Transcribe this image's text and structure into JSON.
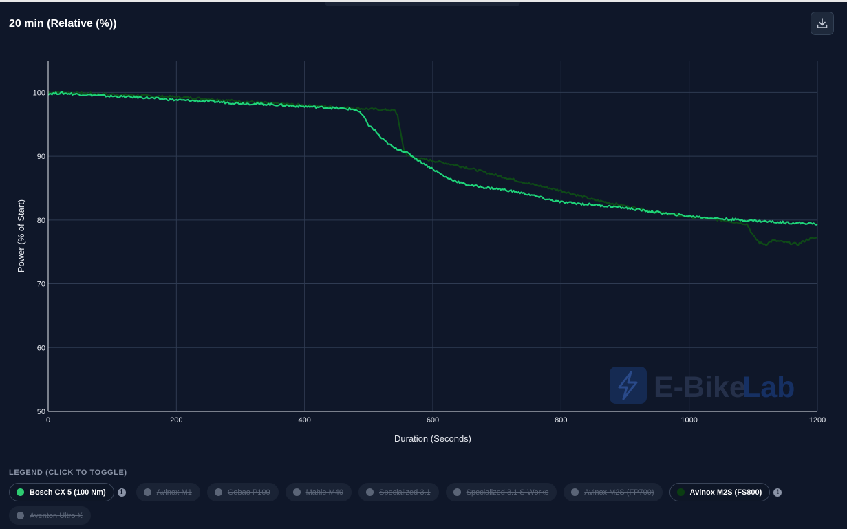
{
  "header": {
    "title": "20 min (Relative (%))",
    "download_icon": "download-icon"
  },
  "watermark": {
    "text_a": "E-Bike",
    "text_b": "Lab",
    "icon": "bolt-icon"
  },
  "legend": {
    "title": "LEGEND (CLICK TO TOGGLE)",
    "items": [
      {
        "label": "Bosch CX 5 (100 Nm)",
        "color": "#2ecc71",
        "active": true,
        "info": true
      },
      {
        "label": "Avinox M1",
        "color": "#5b6577",
        "active": false,
        "info": false
      },
      {
        "label": "Gobao P100",
        "color": "#5b6577",
        "active": false,
        "info": false
      },
      {
        "label": "Mahle M40",
        "color": "#5b6577",
        "active": false,
        "info": false
      },
      {
        "label": "Specialized 3.1",
        "color": "#5b6577",
        "active": false,
        "info": false
      },
      {
        "label": "Specialized 3.1 S-Works",
        "color": "#5b6577",
        "active": false,
        "info": false
      },
      {
        "label": "Avinox M2S (FP700)",
        "color": "#5b6577",
        "active": false,
        "info": false
      },
      {
        "label": "Avinox M2S (FS800)",
        "color": "#0b3d12",
        "active": true,
        "info": true
      },
      {
        "label": "Aventon Ultro X",
        "color": "#5b6577",
        "active": false,
        "info": false
      }
    ]
  },
  "chart_data": {
    "type": "line",
    "title": "20 min (Relative (%))",
    "xlabel": "Duration (Seconds)",
    "ylabel": "Power (% of Start)",
    "xlim": [
      0,
      1200
    ],
    "ylim": [
      50,
      105
    ],
    "xticks": [
      0,
      200,
      400,
      600,
      800,
      1000,
      1200
    ],
    "yticks": [
      50,
      60,
      70,
      80,
      90,
      100
    ],
    "grid": true,
    "series": [
      {
        "name": "Bosch CX 5 (100 Nm)",
        "color": "#1fd47a",
        "x": [
          0,
          20,
          50,
          100,
          150,
          200,
          250,
          300,
          350,
          400,
          440,
          470,
          480,
          490,
          500,
          510,
          520,
          530,
          540,
          550,
          560,
          570,
          580,
          600,
          620,
          650,
          680,
          700,
          720,
          750,
          780,
          800,
          850,
          900,
          950,
          1000,
          1050,
          1100,
          1150,
          1180,
          1200
        ],
        "y": [
          99.8,
          99.9,
          99.7,
          99.4,
          99.2,
          98.8,
          98.6,
          98.3,
          98.1,
          97.8,
          97.6,
          97.4,
          97.3,
          96.5,
          94.9,
          94.0,
          92.8,
          92.0,
          91.3,
          91.0,
          90.5,
          89.9,
          89.2,
          88.0,
          86.7,
          85.6,
          85.1,
          84.9,
          84.6,
          84.0,
          83.2,
          82.8,
          82.4,
          81.9,
          81.2,
          80.6,
          80.2,
          79.9,
          79.6,
          79.5,
          79.4
        ]
      },
      {
        "name": "Avinox M2S (FS800)",
        "color": "#0e4a17",
        "x": [
          0,
          20,
          50,
          100,
          150,
          200,
          250,
          300,
          350,
          400,
          450,
          500,
          520,
          540,
          545,
          550,
          555,
          560,
          570,
          580,
          600,
          650,
          700,
          750,
          800,
          850,
          900,
          950,
          1000,
          1050,
          1090,
          1100,
          1110,
          1120,
          1130,
          1150,
          1170,
          1185,
          1200
        ],
        "y": [
          100.0,
          100.0,
          99.9,
          99.7,
          99.5,
          99.3,
          99.0,
          98.6,
          98.3,
          98.0,
          97.7,
          97.4,
          97.3,
          97.2,
          96.5,
          93.5,
          91.0,
          90.2,
          89.8,
          89.6,
          89.3,
          88.3,
          87.0,
          85.7,
          84.6,
          83.2,
          82.2,
          81.2,
          80.5,
          80.0,
          79.4,
          77.5,
          76.4,
          76.2,
          76.8,
          76.5,
          76.2,
          77.0,
          77.2
        ]
      }
    ]
  }
}
